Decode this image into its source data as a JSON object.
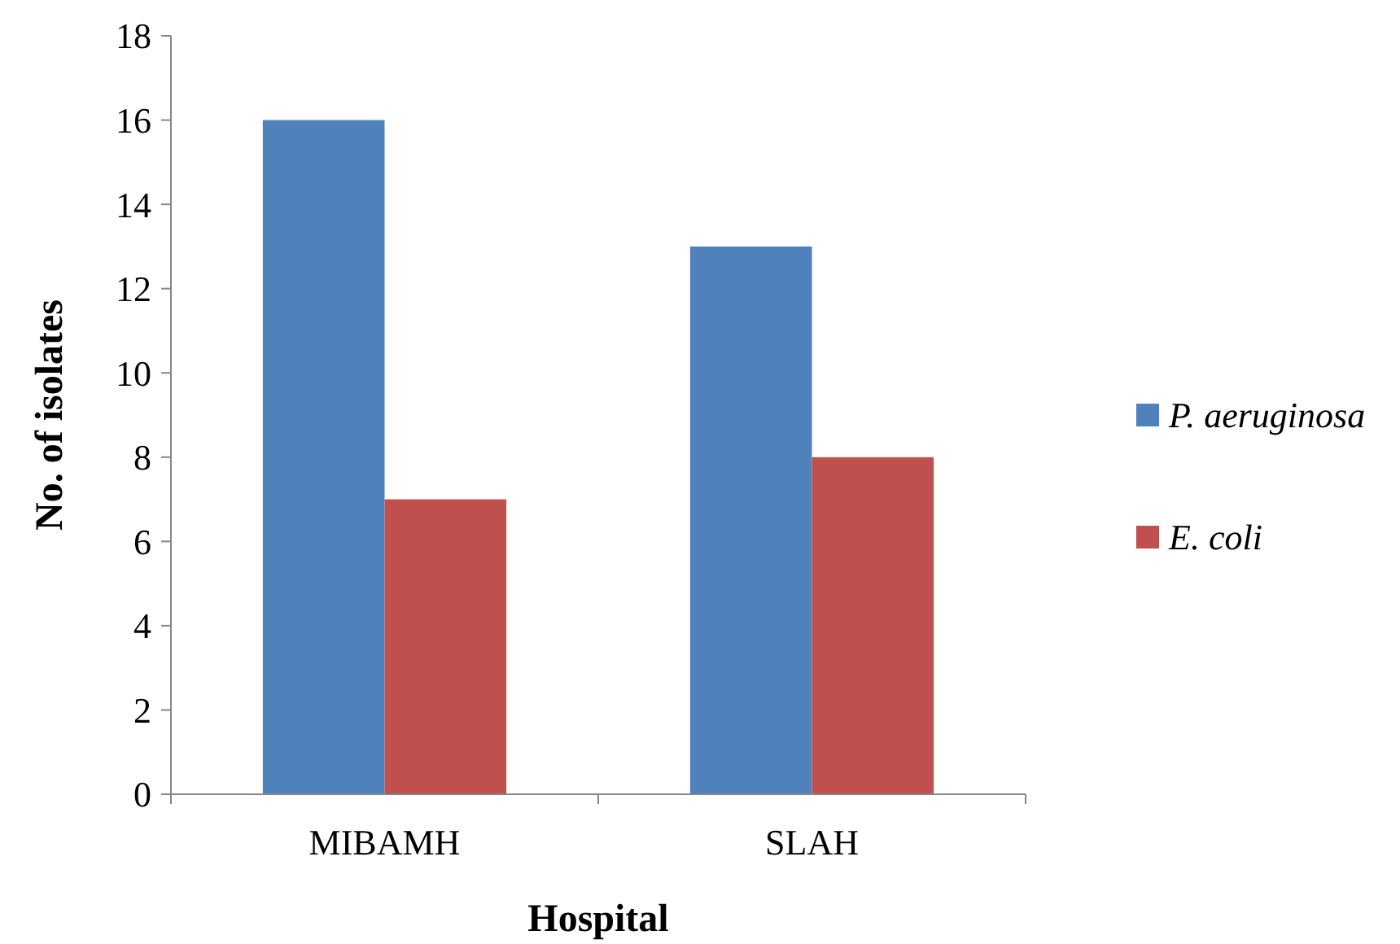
{
  "chart_data": {
    "type": "bar",
    "xlabel": "Hospital",
    "ylabel": "No. of isolates",
    "categories": [
      "MIBAMH",
      "SLAH"
    ],
    "series": [
      {
        "name": "P. aeruginosa",
        "color": "#4f81bd",
        "values": [
          16,
          13
        ]
      },
      {
        "name": "E. coli",
        "color": "#c0504d",
        "values": [
          7,
          8
        ]
      }
    ],
    "ylim": [
      0,
      18
    ],
    "yticks": [
      0,
      2,
      4,
      6,
      8,
      10,
      12,
      14,
      16,
      18
    ],
    "grid": false,
    "legend": "right"
  }
}
